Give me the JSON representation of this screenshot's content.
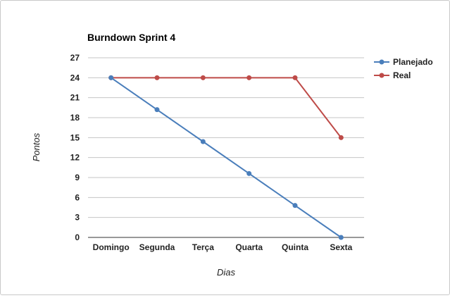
{
  "chart_data": {
    "type": "line",
    "title": "Burndown Sprint 4",
    "xlabel": "Dias",
    "ylabel": "Pontos",
    "categories": [
      "Domingo",
      "Segunda",
      "Terça",
      "Quarta",
      "Quinta",
      "Sexta"
    ],
    "ylim": [
      0,
      27
    ],
    "yticks": [
      0,
      3,
      6,
      9,
      12,
      15,
      18,
      21,
      24,
      27
    ],
    "grid": true,
    "legend": "right",
    "series": [
      {
        "name": "Planejado",
        "color": "#4a7ebb",
        "values": [
          24,
          19.2,
          14.4,
          9.6,
          4.8,
          0
        ]
      },
      {
        "name": "Real",
        "color": "#be4b48",
        "values": [
          24,
          24,
          24,
          24,
          24,
          15
        ]
      }
    ]
  }
}
